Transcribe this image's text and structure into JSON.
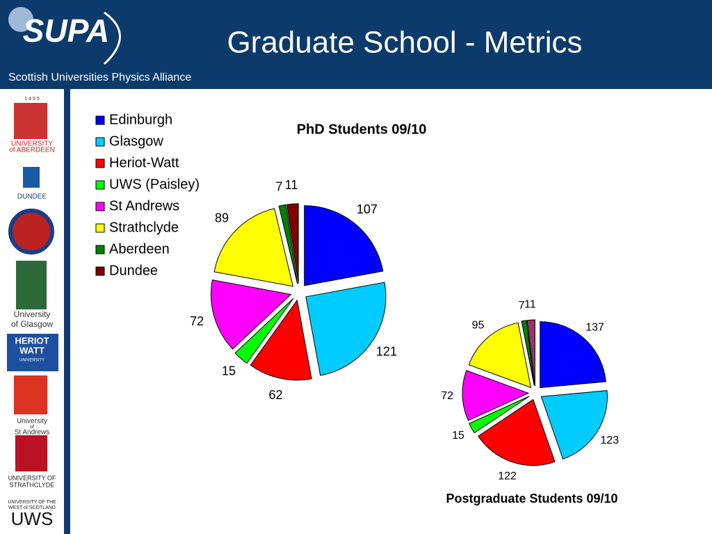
{
  "header": {
    "title": "Graduate School - Metrics",
    "logo": "SUPA",
    "subtitle": "Scottish Universities Physics Alliance"
  },
  "sidebar": [
    "1 4 9 5",
    "UNIVERSITY",
    "of ABERDEEN",
    "DUNDEE",
    "University",
    "of Glasgow",
    "HERIOT",
    "WATT",
    "UNIVERSITY",
    "University",
    "of",
    "St Andrews",
    "UNIVERSITY OF",
    "STRATHCLYDE",
    "UNIVERSITY OF THE",
    "WEST of SCOTLAND",
    "UWS"
  ],
  "chart_data": [
    {
      "type": "pie",
      "title": "PhD Students 09/10",
      "categories": [
        "Edinburgh",
        "Glasgow",
        "Heriot-Watt",
        "UWS (Paisley)",
        "St Andrews",
        "Strathclyde",
        "Aberdeen",
        "Dundee"
      ],
      "values": [
        107,
        121,
        62,
        15,
        72,
        89,
        7,
        11
      ],
      "colors": [
        "#0000ff",
        "#00ccff",
        "#ff0000",
        "#00ff00",
        "#ff00ff",
        "#ffff00",
        "#008000",
        "#800000"
      ],
      "legend": "left"
    },
    {
      "type": "pie",
      "title": "Postgraduate Students 09/10",
      "values": [
        137,
        123,
        122,
        15,
        72,
        95,
        7,
        11
      ],
      "colors": [
        "#0000ff",
        "#00ccff",
        "#ff0000",
        "#00ff00",
        "#ff00ff",
        "#ffff00",
        "#008000",
        "#993366"
      ]
    }
  ]
}
